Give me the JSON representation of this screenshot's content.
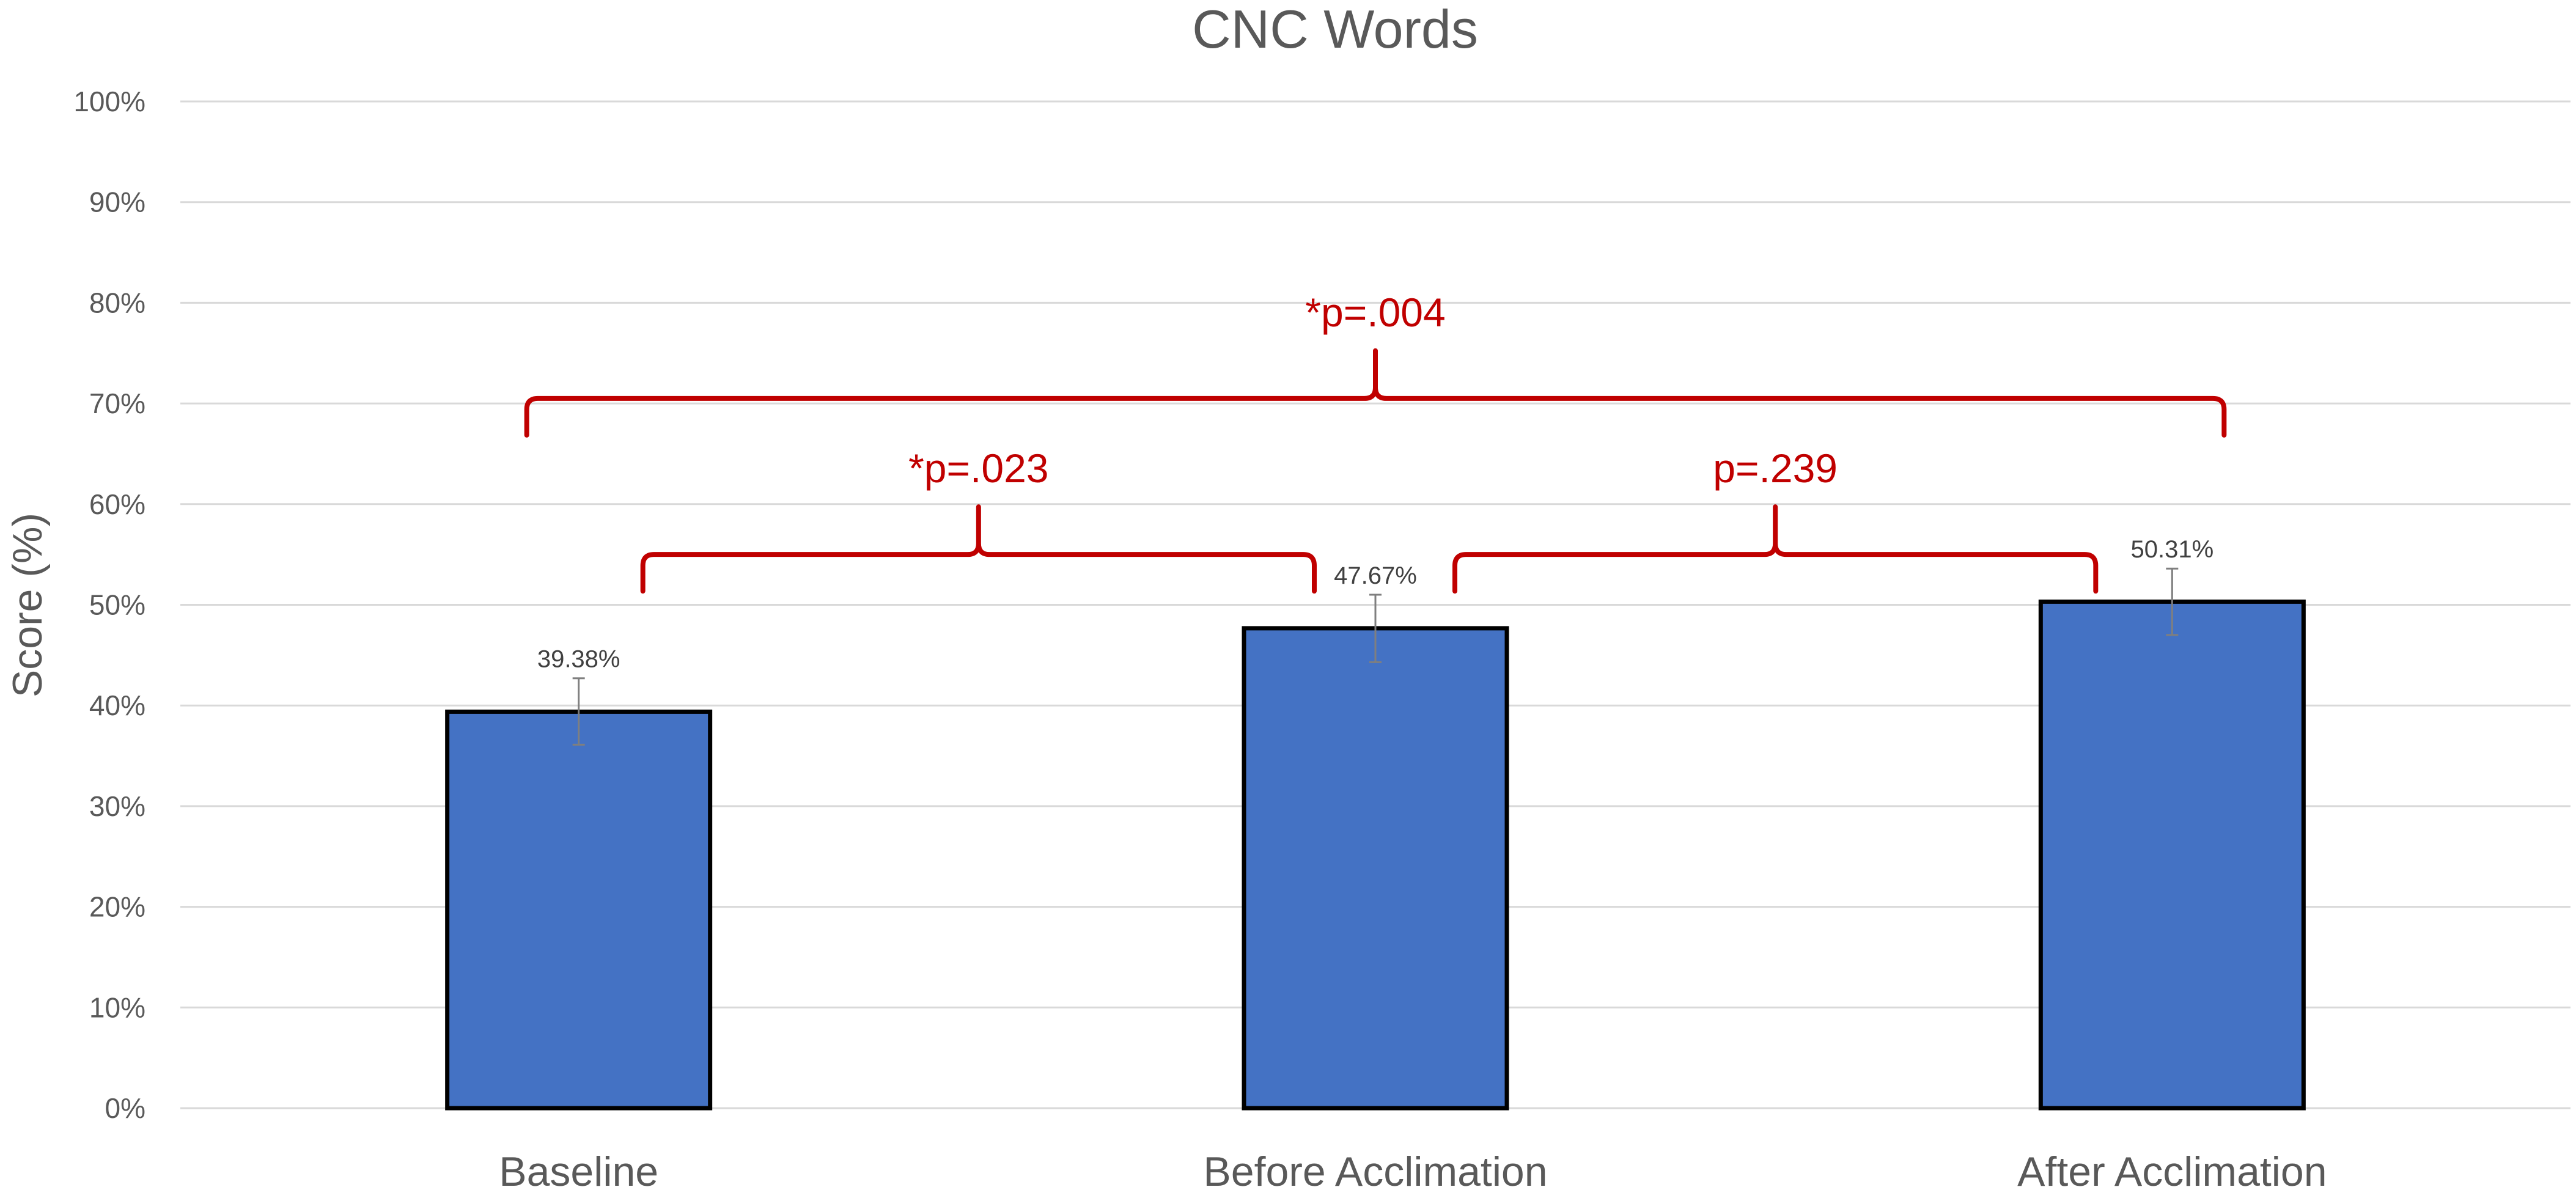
{
  "chart_data": {
    "type": "bar",
    "title": "CNC Words",
    "xlabel": "",
    "ylabel": "Score (%)",
    "categories": [
      "Baseline",
      "Before Acclimation",
      "After Acclimation"
    ],
    "values": [
      39.38,
      47.67,
      50.31
    ],
    "data_labels": [
      "39.38%",
      "47.67%",
      "50.31%"
    ],
    "error_bars": [
      {
        "low": 36.1,
        "high": 42.7
      },
      {
        "low": 44.3,
        "high": 51.0
      },
      {
        "low": 47.0,
        "high": 53.6
      }
    ],
    "ylim": [
      0,
      100
    ],
    "y_ticks": [
      {
        "value": 0,
        "label": "0%"
      },
      {
        "value": 10,
        "label": "10%"
      },
      {
        "value": 20,
        "label": "20%"
      },
      {
        "value": 30,
        "label": "30%"
      },
      {
        "value": 40,
        "label": "40%"
      },
      {
        "value": 50,
        "label": "50%"
      },
      {
        "value": 60,
        "label": "60%"
      },
      {
        "value": 70,
        "label": "70%"
      },
      {
        "value": 80,
        "label": "80%"
      },
      {
        "value": 90,
        "label": "90%"
      },
      {
        "value": 100,
        "label": "100%"
      }
    ],
    "grid": true,
    "legend": "none",
    "bar_color": "#4472c4",
    "bar_border_color": "#000000",
    "annotation_color": "#c00000",
    "significance": [
      {
        "from": 0,
        "to": 1,
        "label": "*p=.023",
        "level": 55
      },
      {
        "from": 1,
        "to": 2,
        "label": "p=.239",
        "level": 55
      },
      {
        "from": 0,
        "to": 2,
        "label": "*p=.004",
        "level": 70.5
      }
    ]
  }
}
